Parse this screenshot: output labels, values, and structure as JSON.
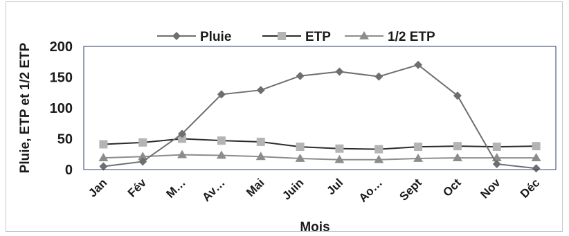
{
  "chart_data": {
    "type": "line",
    "title": "",
    "xlabel": "Mois",
    "ylabel": "Pluie, ETP et 1/2 ETP",
    "ylim": [
      0,
      200
    ],
    "yticks": [
      0,
      50,
      100,
      150,
      200
    ],
    "grid": false,
    "legend_position": "top",
    "categories": [
      "Jan",
      "Fév",
      "M…",
      "Av…",
      "Mai",
      "Juin",
      "Jul",
      "Ao…",
      "Sept",
      "Oct",
      "Nov",
      "Déc"
    ],
    "series": [
      {
        "name": "Pluie",
        "marker": "diamond",
        "color": "#6e6e6e",
        "values": [
          5,
          13,
          58,
          122,
          129,
          152,
          159,
          151,
          170,
          120,
          9,
          2
        ]
      },
      {
        "name": "ETP",
        "marker": "square",
        "color": "#2b2b2b",
        "marker_color": "#b4b4b4",
        "values": [
          41,
          44,
          50,
          47,
          45,
          37,
          34,
          33,
          37,
          38,
          37,
          38
        ]
      },
      {
        "name": "1/2 ETP",
        "marker": "triangle",
        "color": "#8c8c8c",
        "values": [
          19,
          21,
          24,
          23,
          21,
          18,
          16,
          16,
          18,
          19,
          19,
          19
        ]
      }
    ]
  }
}
